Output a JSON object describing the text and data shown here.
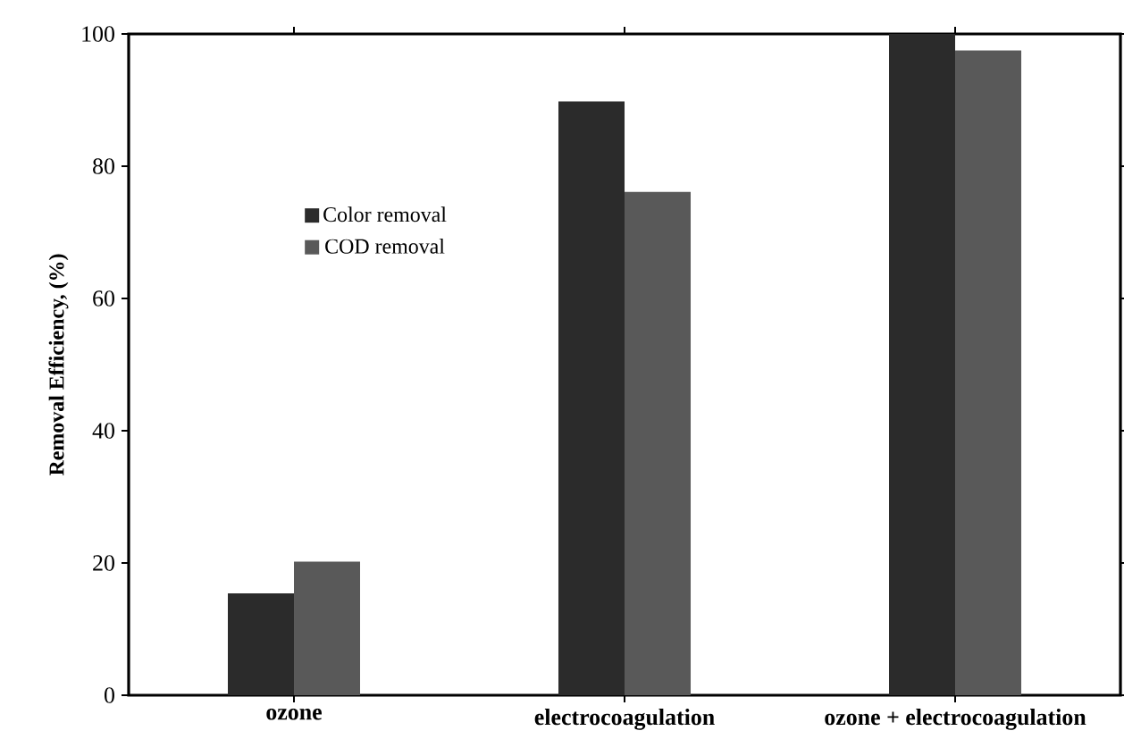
{
  "chart_data": {
    "type": "bar",
    "ylabel": "Removal Efficiency, (%)",
    "categories": [
      "ozone",
      "electrocoagulation",
      "ozone + electrocoagulation"
    ],
    "series": [
      {
        "name": "Color removal",
        "color": "#2b2b2b",
        "values": [
          15.4,
          89.8,
          100
        ]
      },
      {
        "name": "COD removal",
        "color": "#595959",
        "values": [
          20.2,
          76.1,
          97.5
        ]
      }
    ],
    "ylim": [
      0,
      100
    ],
    "yticks": [
      0,
      20,
      40,
      60,
      80,
      100
    ],
    "legend": "top left",
    "grid": false
  }
}
